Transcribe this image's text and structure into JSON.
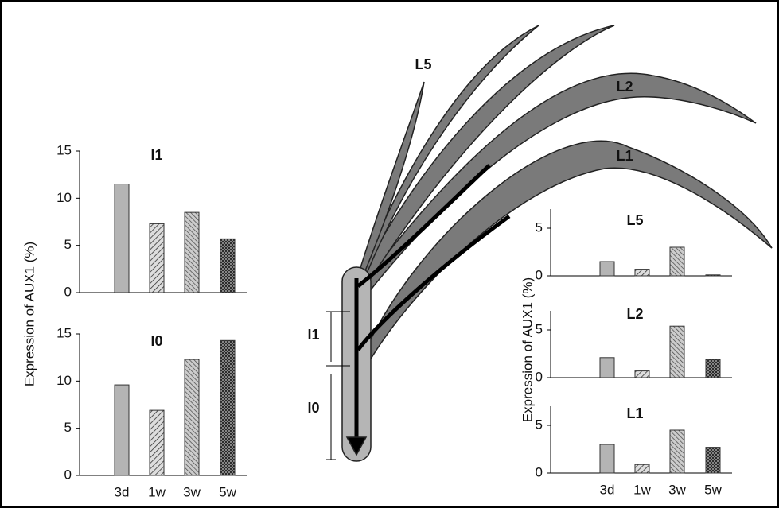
{
  "chart_data": [
    {
      "type": "bar",
      "title": "I1",
      "values": [
        11.5,
        7.3,
        8.5,
        5.7
      ],
      "ylim": [
        0,
        15
      ],
      "yticks": [
        0,
        5,
        10,
        15
      ]
    },
    {
      "type": "bar",
      "title": "I0",
      "categories": [
        "3d",
        "1w",
        "3w",
        "5w"
      ],
      "values": [
        9.6,
        6.9,
        12.3,
        14.3
      ],
      "ylim": [
        0,
        15
      ],
      "yticks": [
        0,
        5,
        10,
        15
      ],
      "ylabel": "Expression of AUX1  (%)"
    },
    {
      "type": "bar",
      "title": "L5",
      "values": [
        1.5,
        0.7,
        3.0,
        0.1
      ],
      "ylim": [
        0,
        7
      ],
      "yticks": [
        0,
        5
      ]
    },
    {
      "type": "bar",
      "title": "L2",
      "values": [
        2.1,
        0.7,
        5.4,
        1.9
      ],
      "ylim": [
        0,
        7
      ],
      "yticks": [
        0,
        5
      ],
      "ylabel": "Expression of AUX1  (%)"
    },
    {
      "type": "bar",
      "title": "L1",
      "categories": [
        "3d",
        "1w",
        "3w",
        "5w"
      ],
      "values": [
        3.0,
        0.9,
        4.5,
        2.7
      ],
      "ylim": [
        0,
        7
      ],
      "yticks": [
        0,
        5
      ]
    }
  ],
  "diagram": {
    "labels": [
      "L5",
      "L2",
      "L1",
      "I1",
      "I0"
    ]
  }
}
